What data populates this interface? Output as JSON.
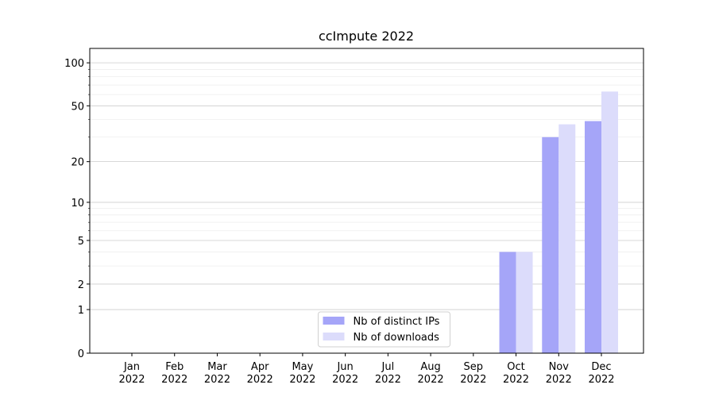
{
  "chart_data": {
    "type": "bar",
    "title": "ccImpute 2022",
    "categories": [
      "Jan\n2022",
      "Feb\n2022",
      "Mar\n2022",
      "Apr\n2022",
      "May\n2022",
      "Jun\n2022",
      "Jul\n2022",
      "Aug\n2022",
      "Sep\n2022",
      "Oct\n2022",
      "Nov\n2022",
      "Dec\n2022"
    ],
    "series": [
      {
        "name": "Nb of distinct IPs",
        "color": "#a5a5f8",
        "values": [
          0,
          0,
          0,
          0,
          0,
          0,
          0,
          0,
          0,
          4,
          30,
          39
        ]
      },
      {
        "name": "Nb of downloads",
        "color": "#dcdcfb",
        "values": [
          0,
          0,
          0,
          0,
          0,
          0,
          0,
          0,
          0,
          4,
          37,
          63
        ]
      }
    ],
    "yscale": "log1p",
    "ylim": [
      0,
      126
    ],
    "yticks": [
      0,
      1,
      2,
      5,
      10,
      20,
      50,
      100
    ],
    "yminorticks": [
      3,
      4,
      6,
      7,
      8,
      9,
      30,
      40,
      60,
      70,
      80,
      90
    ],
    "grid": true,
    "legend": "lower center"
  }
}
